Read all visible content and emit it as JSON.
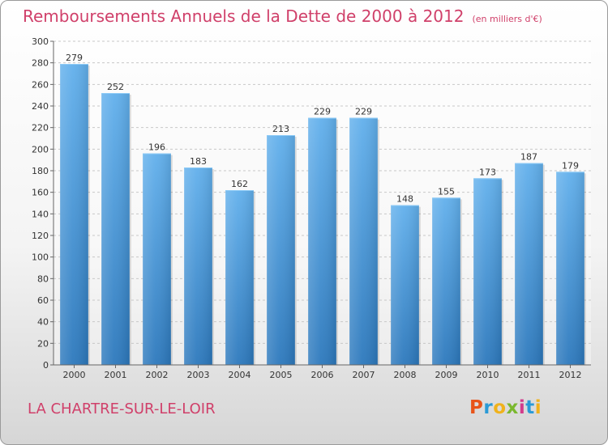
{
  "header": {
    "title": "Remboursements Annuels de la Dette de 2000 à 2012",
    "unit": "(en milliers d'€)"
  },
  "footer": {
    "city": "LA CHARTRE-SUR-LE-LOIR",
    "logo_letters": [
      "P",
      "r",
      "o",
      "x",
      "i",
      "t",
      "i"
    ],
    "logo_colors": [
      "#e8541a",
      "#2a9ad6",
      "#f0b21c",
      "#7ab82e",
      "#d23c8c",
      "#2a9ad6",
      "#f0b21c"
    ]
  },
  "colors": {
    "accent": "#d0406a",
    "bar": "#4a9ee0",
    "bar_light": "#6cb8f0",
    "bar_dark": "#2c78bc"
  },
  "chart_data": {
    "type": "bar",
    "title": "Remboursements Annuels de la Dette de 2000 à 2012",
    "subtitle": "(en milliers d'€)",
    "categories": [
      "2000",
      "2001",
      "2002",
      "2003",
      "2004",
      "2005",
      "2006",
      "2007",
      "2008",
      "2009",
      "2010",
      "2011",
      "2012"
    ],
    "values": [
      279,
      252,
      196,
      183,
      162,
      213,
      229,
      229,
      148,
      155,
      173,
      187,
      179
    ],
    "ylim": [
      0,
      300
    ],
    "yticks": [
      0,
      20,
      40,
      60,
      80,
      100,
      120,
      140,
      160,
      180,
      200,
      220,
      240,
      260,
      280,
      300
    ],
    "grid": true,
    "legend": "none"
  }
}
